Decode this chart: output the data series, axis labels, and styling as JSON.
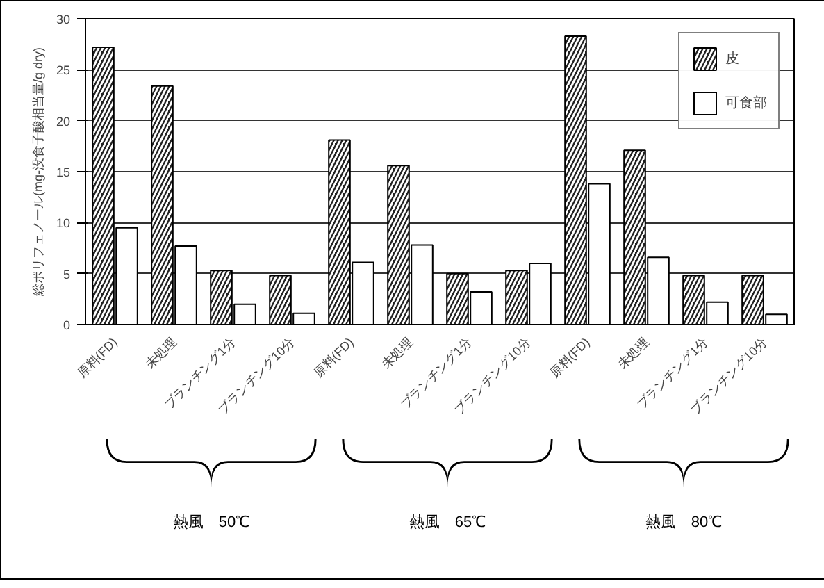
{
  "chart_data": {
    "type": "bar",
    "ylabel": "総ポリフェノール(mg-没食子酸相当量/g dry)",
    "categories": [
      "原料(FD)",
      "未処理",
      "ブランチング1分",
      "ブランチング10分",
      "原料(FD)",
      "未処理",
      "ブランチング1分",
      "ブランチング10分",
      "原料(FD)",
      "未処理",
      "ブランチング1分",
      "ブランチング10分"
    ],
    "series": [
      {
        "name": "皮",
        "color": "#222222",
        "values": [
          27.2,
          23.4,
          5.3,
          4.8,
          18.1,
          15.6,
          5.0,
          5.3,
          28.3,
          17.1,
          4.8,
          4.8
        ]
      },
      {
        "name": "可食部",
        "color": "#ffffff",
        "values": [
          9.5,
          7.7,
          2.0,
          1.1,
          6.1,
          7.8,
          3.2,
          6.0,
          13.8,
          6.6,
          2.2,
          1.0
        ]
      }
    ],
    "ylim": [
      0,
      30
    ],
    "yticks": [
      0,
      5,
      10,
      15,
      20,
      25,
      30
    ],
    "grid": "y",
    "legend": "top right",
    "annotations": [
      "熱風　50℃",
      "熱風　65℃",
      "熱風　80℃"
    ]
  }
}
